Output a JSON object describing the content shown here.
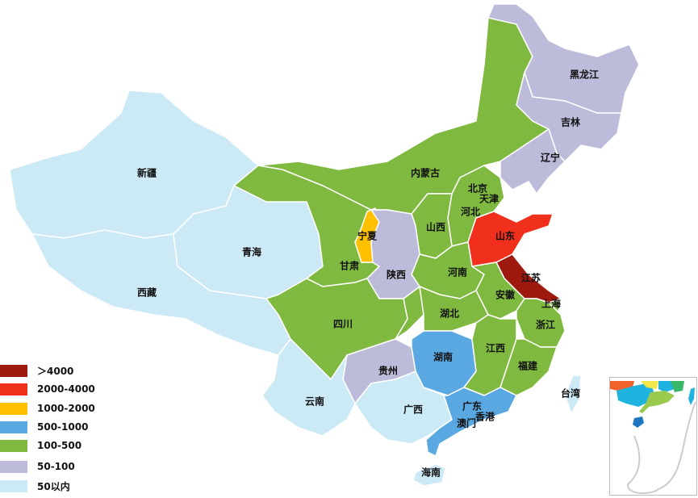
{
  "legend": [
    {
      "label": "＞4000",
      "color": "#9e1a0f"
    },
    {
      "label": "2000-4000",
      "color": "#f0301c"
    },
    {
      "label": "1000-2000",
      "color": "#ffc000"
    },
    {
      "label": "500-1000",
      "color": "#5aa8e2"
    },
    {
      "label": "100-500",
      "color": "#80b940"
    },
    {
      "label": "50-100",
      "color": "#bcbcda"
    },
    {
      "label": "50以内",
      "color": "#cce9f6"
    }
  ],
  "provinces": [
    {
      "name": "新疆",
      "level": 6
    },
    {
      "name": "西藏",
      "level": 6
    },
    {
      "name": "青海",
      "level": 6
    },
    {
      "name": "甘肃",
      "level": 4
    },
    {
      "name": "内蒙古",
      "level": 4
    },
    {
      "name": "黑龙江",
      "level": 5
    },
    {
      "name": "吉林",
      "level": 5
    },
    {
      "name": "辽宁",
      "level": 5
    },
    {
      "name": "北京",
      "level": 3
    },
    {
      "name": "天津",
      "level": 6
    },
    {
      "name": "河北",
      "level": 4
    },
    {
      "name": "山西",
      "level": 4
    },
    {
      "name": "山东",
      "level": 1
    },
    {
      "name": "江苏",
      "level": 0
    },
    {
      "name": "上海",
      "level": 4
    },
    {
      "name": "河南",
      "level": 4
    },
    {
      "name": "安徽",
      "level": 4
    },
    {
      "name": "宁夏",
      "level": 2
    },
    {
      "name": "陕西",
      "level": 5
    },
    {
      "name": "四川",
      "level": 4
    },
    {
      "name": "湖北",
      "level": 4
    },
    {
      "name": "贵州",
      "level": 5
    },
    {
      "name": "云南",
      "level": 6
    },
    {
      "name": "广西",
      "level": 6
    },
    {
      "name": "湖南",
      "level": 3
    },
    {
      "name": "江西",
      "level": 4
    },
    {
      "name": "浙江",
      "level": 4
    },
    {
      "name": "福建",
      "level": 4
    },
    {
      "name": "广东",
      "level": 3
    },
    {
      "name": "海南",
      "level": 6
    },
    {
      "name": "台湾",
      "level": 6
    },
    {
      "name": "香港"
    },
    {
      "name": "澳门"
    }
  ],
  "unlabeled_regions": [
    {
      "level": 4
    }
  ]
}
